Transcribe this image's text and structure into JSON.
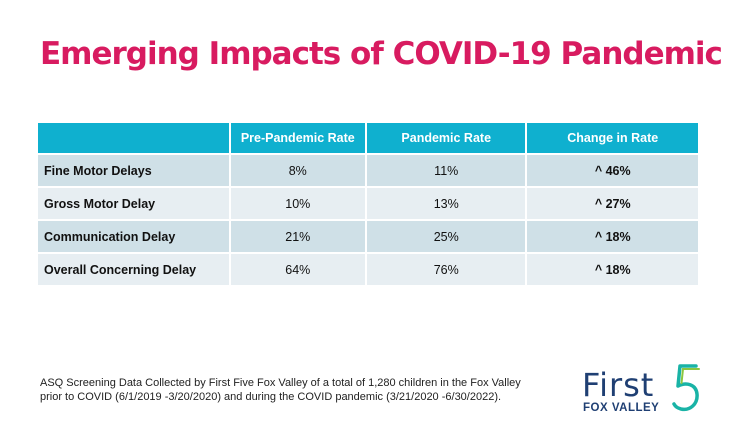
{
  "title": "Emerging Impacts of COVID-19 Pandemic",
  "table": {
    "headers": [
      "",
      "Pre-Pandemic Rate",
      "Pandemic Rate",
      "Change in Rate"
    ],
    "rows": [
      {
        "label": "Fine Motor Delays",
        "pre": "8%",
        "pandemic": "11%",
        "change": "^ 46%"
      },
      {
        "label": "Gross Motor Delay",
        "pre": "10%",
        "pandemic": "13%",
        "change": "^ 27%"
      },
      {
        "label": "Communication Delay",
        "pre": "21%",
        "pandemic": "25%",
        "change": "^ 18%"
      },
      {
        "label": "Overall Concerning Delay",
        "pre": "64%",
        "pandemic": "76%",
        "change": "^ 18%"
      }
    ]
  },
  "footnote": {
    "line1": "ASQ Screening Data Collected by First Five Fox Valley of a total of 1,280 children in the Fox Valley",
    "line2": "prior to COVID (6/1/2019  -3/20/2020) and during the COVID pandemic (3/21/2020   -6/30/2022)."
  },
  "logo": {
    "word": "First",
    "numeral": "5",
    "subtitle": "FOX VALLEY",
    "colors": {
      "navy": "#1f3f73",
      "teal": "#19b3a6",
      "green": "#8cc63f"
    }
  },
  "colors": {
    "title": "#d81b60",
    "header_bg": "#0fb0cf",
    "row_dark": "#cfe0e7",
    "row_light": "#e7eef2"
  }
}
